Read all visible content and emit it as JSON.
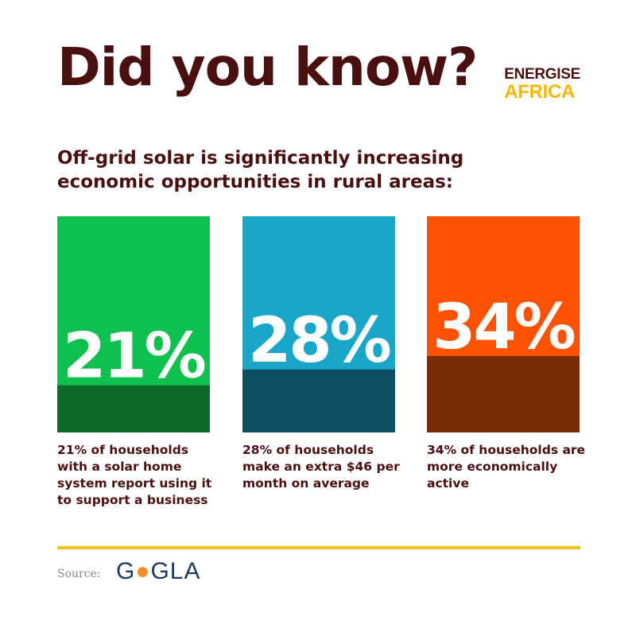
{
  "header": {
    "title": "Did you know?",
    "logo_line1": "ENERGISE",
    "logo_line2": "AFRICA"
  },
  "subtitle": "Off-grid solar is significantly increasing economic opportunities in rural areas:",
  "chart_data": {
    "type": "bar",
    "categories": [
      "21% of households with a solar home system report using it to support a business",
      "28% of households make an extra $46 per month on average",
      "34% of households are more economically active"
    ],
    "values": [
      21,
      28,
      34
    ],
    "labels": [
      "21%",
      "28%",
      "34%"
    ],
    "ylim": [
      0,
      100
    ],
    "colors": {
      "top": [
        "#0fc04e",
        "#1aa6c9",
        "#ff5200"
      ],
      "bottom": [
        "#0c6b2b",
        "#0e4e63",
        "#7a2a05"
      ]
    }
  },
  "source": {
    "label": "Source:",
    "logo_pre": "G",
    "logo_o": "●",
    "logo_post": "GLA"
  }
}
